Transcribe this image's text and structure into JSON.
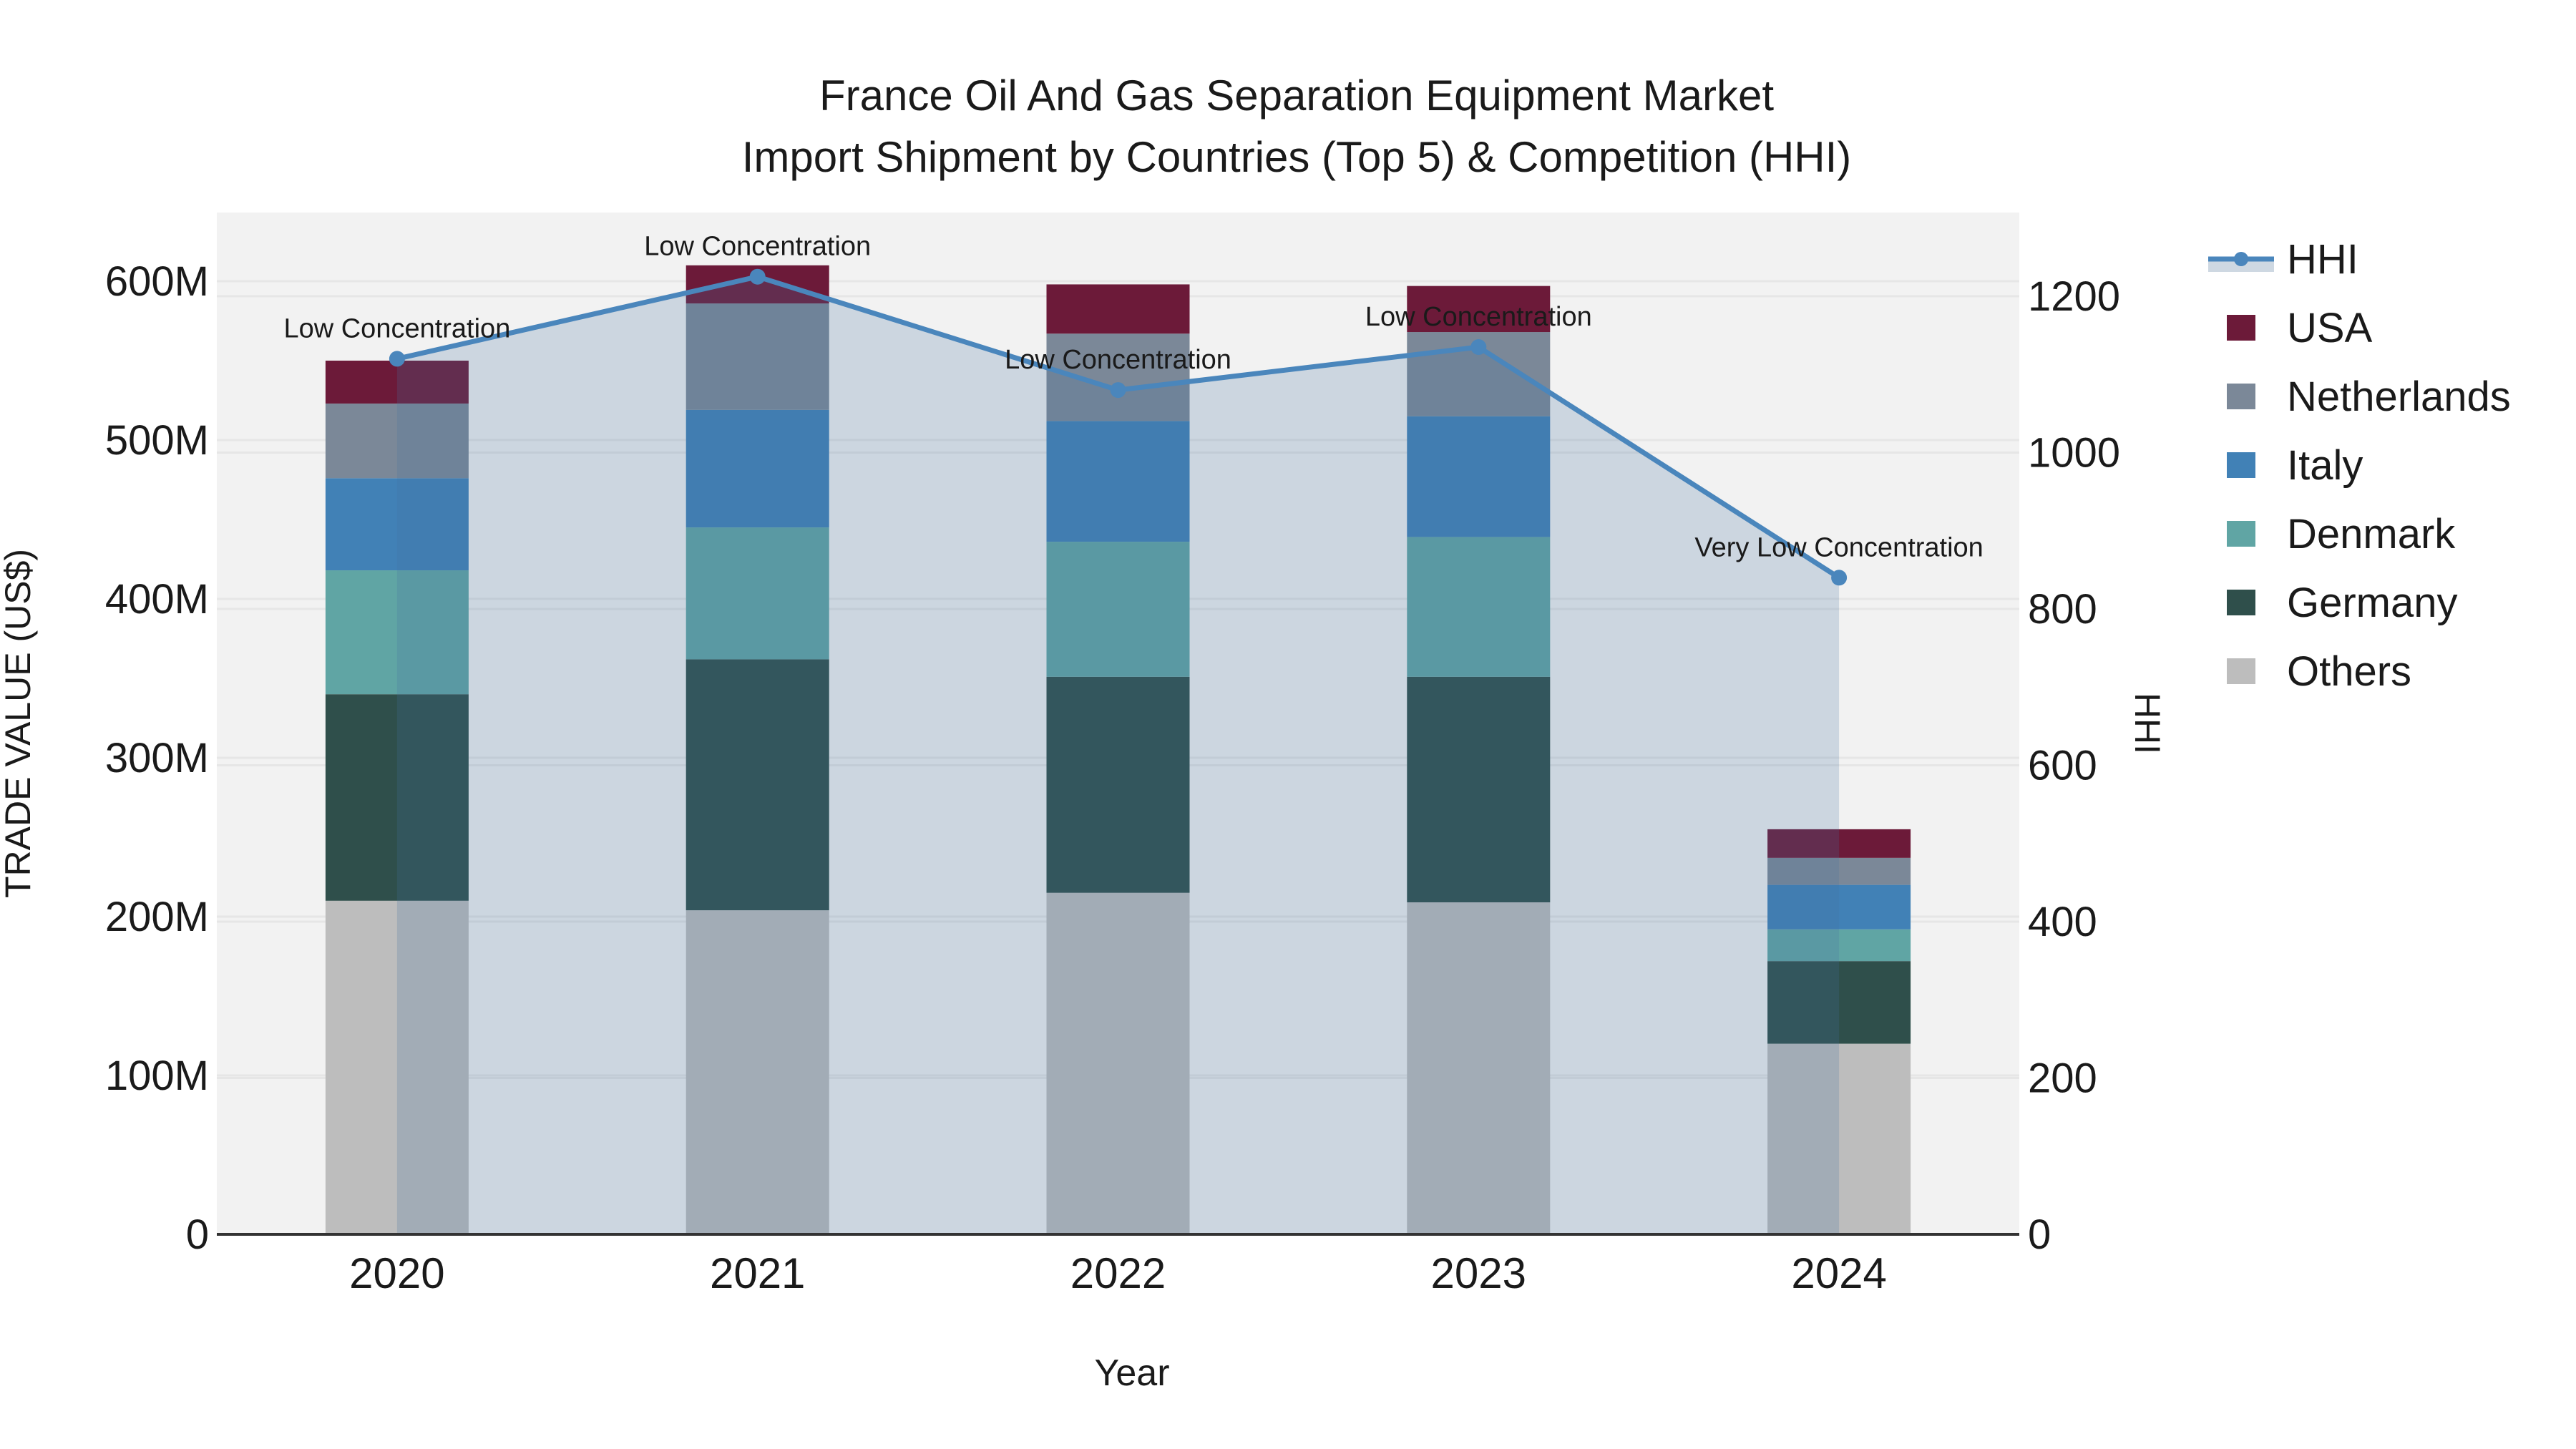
{
  "title": {
    "line1": "France Oil And Gas Separation Equipment Market",
    "line2": "Import Shipment by Countries (Top 5) & Competition (HHI)"
  },
  "axes": {
    "left_label": "TRADE VALUE (US$)",
    "right_label": "HHI",
    "x_label": "Year",
    "left_ticks": [
      {
        "label": "0",
        "value": 0
      },
      {
        "label": "100M",
        "value": 100
      },
      {
        "label": "200M",
        "value": 200
      },
      {
        "label": "300M",
        "value": 300
      },
      {
        "label": "400M",
        "value": 400
      },
      {
        "label": "500M",
        "value": 500
      },
      {
        "label": "600M",
        "value": 600
      }
    ],
    "right_ticks": [
      {
        "label": "0",
        "value": 0
      },
      {
        "label": "200",
        "value": 200
      },
      {
        "label": "400",
        "value": 400
      },
      {
        "label": "600",
        "value": 600
      },
      {
        "label": "800",
        "value": 800
      },
      {
        "label": "1000",
        "value": 1000
      },
      {
        "label": "1200",
        "value": 1200
      }
    ],
    "x_ticks": [
      "2020",
      "2021",
      "2022",
      "2023",
      "2024"
    ]
  },
  "legend": {
    "items": [
      {
        "label": "HHI",
        "type": "line",
        "color": "#4A86BC"
      },
      {
        "label": "USA",
        "type": "patch",
        "color": "#6C1A39"
      },
      {
        "label": "Netherlands",
        "type": "patch",
        "color": "#7B8898"
      },
      {
        "label": "Italy",
        "type": "patch",
        "color": "#4181B6"
      },
      {
        "label": "Denmark",
        "type": "patch",
        "color": "#60A5A4"
      },
      {
        "label": "Germany",
        "type": "patch",
        "color": "#2F4F4B"
      },
      {
        "label": "Others",
        "type": "patch",
        "color": "#BDBDBD"
      }
    ]
  },
  "colors": {
    "plot_background": "#F2F2F2",
    "figure_background": "#FFFFFF",
    "gridline": "#E6E6E6",
    "axis_line": "#333333",
    "text": "#1A1A1A",
    "hhi_line": "#4A86BC",
    "hhi_area_fill": "rgba(70,115,160,0.22)",
    "hhi_area_legend_solid": "#CED8E2"
  },
  "chart_data": {
    "type": "bar+line",
    "title": "France Oil And Gas Separation Equipment Market Import Shipment by Countries (Top 5) & Competition (HHI)",
    "xlabel": "Year",
    "ylabel_left": "TRADE VALUE (US$)",
    "ylabel_right": "HHI",
    "unit": "US$ millions",
    "grid": true,
    "legend_position": "right",
    "categories": [
      "2020",
      "2021",
      "2022",
      "2023",
      "2024"
    ],
    "stack_order_bottom_to_top": [
      "Others",
      "Germany",
      "Denmark",
      "Italy",
      "Netherlands",
      "USA"
    ],
    "series": [
      {
        "name": "USA",
        "color": "#6C1A39",
        "values": [
          27,
          24,
          31,
          29,
          18
        ]
      },
      {
        "name": "Netherlands",
        "color": "#7B8898",
        "values": [
          47,
          67,
          55,
          53,
          17
        ]
      },
      {
        "name": "Italy",
        "color": "#4181B6",
        "values": [
          58,
          74,
          76,
          76,
          28
        ]
      },
      {
        "name": "Denmark",
        "color": "#60A5A4",
        "values": [
          78,
          83,
          85,
          88,
          20
        ]
      },
      {
        "name": "Germany",
        "color": "#2F4F4B",
        "values": [
          130,
          158,
          136,
          142,
          52
        ]
      },
      {
        "name": "Others",
        "color": "#BDBDBD",
        "values": [
          210,
          204,
          215,
          209,
          120
        ]
      }
    ],
    "totals_millions": [
      550,
      610,
      598,
      597,
      255
    ],
    "line_series": {
      "name": "HHI",
      "axis": "right",
      "color": "#4A86BC",
      "values": [
        1120,
        1225,
        1080,
        1135,
        840
      ]
    },
    "annotations": [
      {
        "category": "2020",
        "text": "Low Concentration"
      },
      {
        "category": "2021",
        "text": "Low Concentration"
      },
      {
        "category": "2022",
        "text": "Low Concentration"
      },
      {
        "category": "2023",
        "text": "Low Concentration"
      },
      {
        "category": "2024",
        "text": "Very Low Concentration"
      }
    ],
    "ylim_left_millions": [
      0,
      643
    ],
    "ylim_right_hhi": [
      0,
      1307
    ]
  }
}
